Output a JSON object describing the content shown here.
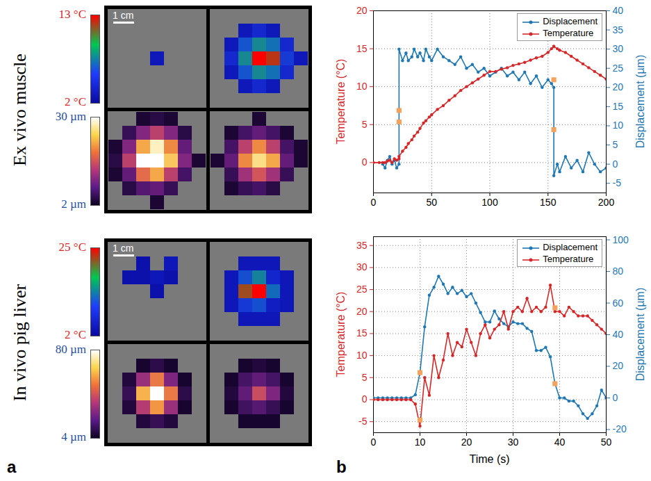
{
  "panel_labels": [
    "a",
    "b"
  ],
  "chart_data": [
    {
      "type": "heatmap",
      "row_label": "Ex vivo muscle",
      "scale_bar": "1 cm",
      "colorbars": [
        {
          "range": [
            2,
            13
          ],
          "ticks": [
            {
              "value": 13,
              "label": "13 °C"
            },
            {
              "value": 2,
              "label": "2 °C"
            }
          ],
          "color": "#d62728",
          "colors": [
            "#0a0aa0",
            "#1e3cff",
            "#00c850",
            "#ff0000"
          ]
        },
        {
          "range": [
            2,
            30
          ],
          "ticks": [
            {
              "value": 30,
              "label": "30 µm"
            },
            {
              "value": 2,
              "label": "2 µm"
            }
          ],
          "color": "#1f4fa0",
          "colors": [
            "#0d0221",
            "#5b1a8a",
            "#b5367a",
            "#f0703a",
            "#fbd54a",
            "#ffffff"
          ]
        }
      ],
      "maps": [
        {
          "colorbar": 0,
          "cells": [
            [
              null,
              null,
              null,
              null,
              null,
              null,
              null
            ],
            [
              null,
              null,
              null,
              null,
              null,
              null,
              null
            ],
            [
              null,
              null,
              null,
              null,
              null,
              null,
              null
            ],
            [
              null,
              null,
              null,
              3,
              null,
              null,
              null
            ],
            [
              null,
              null,
              null,
              null,
              null,
              null,
              null
            ],
            [
              null,
              null,
              null,
              null,
              null,
              null,
              null
            ],
            [
              null,
              null,
              null,
              null,
              null,
              null,
              null
            ]
          ]
        },
        {
          "colorbar": 0,
          "cells": [
            [
              null,
              null,
              null,
              null,
              null,
              null,
              null
            ],
            [
              null,
              null,
              3,
              4,
              3,
              null,
              null
            ],
            [
              null,
              3,
              6,
              8,
              7,
              4,
              null
            ],
            [
              null,
              4,
              8,
              13,
              12,
              5,
              3
            ],
            [
              null,
              3,
              6,
              8,
              7,
              4,
              null
            ],
            [
              null,
              null,
              3,
              4,
              3,
              null,
              null
            ],
            [
              null,
              null,
              null,
              null,
              null,
              null,
              null
            ]
          ]
        },
        {
          "colorbar": 1,
          "cells": [
            [
              null,
              null,
              3,
              4,
              3,
              null,
              null
            ],
            [
              null,
              5,
              10,
              14,
              10,
              4,
              null
            ],
            [
              3,
              10,
              22,
              28,
              20,
              8,
              null
            ],
            [
              4,
              14,
              30,
              30,
              24,
              10,
              3
            ],
            [
              3,
              8,
              18,
              22,
              14,
              6,
              null
            ],
            [
              null,
              4,
              7,
              8,
              5,
              null,
              null
            ],
            [
              null,
              null,
              null,
              3,
              null,
              null,
              null
            ]
          ]
        },
        {
          "colorbar": 1,
          "cells": [
            [
              null,
              null,
              null,
              3,
              null,
              null,
              null
            ],
            [
              null,
              3,
              6,
              8,
              6,
              3,
              null
            ],
            [
              null,
              6,
              14,
              20,
              14,
              6,
              3
            ],
            [
              3,
              8,
              20,
              26,
              22,
              8,
              3
            ],
            [
              null,
              5,
              12,
              16,
              12,
              5,
              null
            ],
            [
              null,
              3,
              5,
              6,
              4,
              null,
              null
            ],
            [
              null,
              null,
              null,
              null,
              null,
              null,
              null
            ]
          ]
        }
      ]
    },
    {
      "type": "heatmap",
      "row_label": "In vivo pig liver",
      "scale_bar": "1 cm",
      "colorbars": [
        {
          "range": [
            2,
            25
          ],
          "ticks": [
            {
              "value": 25,
              "label": "25 °C"
            },
            {
              "value": 2,
              "label": "2 °C"
            }
          ],
          "color": "#d62728",
          "colors": [
            "#0a0aa0",
            "#1e3cff",
            "#00c850",
            "#ff0000"
          ]
        },
        {
          "range": [
            4,
            80
          ],
          "ticks": [
            {
              "value": 80,
              "label": "80 µm"
            },
            {
              "value": 4,
              "label": "4 µm"
            }
          ],
          "color": "#1f4fa0",
          "colors": [
            "#0d0221",
            "#5b1a8a",
            "#b5367a",
            "#f0703a",
            "#fbd54a",
            "#ffffff"
          ]
        }
      ],
      "maps": [
        {
          "colorbar": 0,
          "cells": [
            [
              null,
              null,
              null,
              null,
              null,
              null,
              null
            ],
            [
              null,
              null,
              3,
              null,
              4,
              null,
              null
            ],
            [
              null,
              3,
              3,
              4,
              3,
              null,
              null
            ],
            [
              null,
              null,
              null,
              3,
              null,
              null,
              null
            ],
            [
              null,
              null,
              null,
              null,
              null,
              null,
              null
            ],
            [
              null,
              null,
              null,
              null,
              null,
              null,
              null
            ],
            [
              null,
              null,
              null,
              null,
              null,
              null,
              null
            ]
          ]
        },
        {
          "colorbar": 0,
          "cells": [
            [
              null,
              null,
              null,
              null,
              null,
              null,
              null
            ],
            [
              null,
              null,
              4,
              4,
              4,
              null,
              null
            ],
            [
              null,
              4,
              10,
              14,
              6,
              4,
              null
            ],
            [
              null,
              4,
              22,
              25,
              12,
              4,
              null
            ],
            [
              null,
              4,
              8,
              10,
              5,
              4,
              null
            ],
            [
              null,
              null,
              4,
              4,
              4,
              null,
              null
            ],
            [
              null,
              null,
              null,
              null,
              null,
              null,
              null
            ]
          ]
        },
        {
          "colorbar": 1,
          "cells": [
            [
              null,
              null,
              null,
              null,
              null,
              null,
              null
            ],
            [
              null,
              null,
              6,
              10,
              6,
              null,
              null
            ],
            [
              null,
              8,
              30,
              50,
              25,
              6,
              null
            ],
            [
              null,
              12,
              60,
              80,
              50,
              10,
              null
            ],
            [
              null,
              8,
              35,
              55,
              30,
              6,
              null
            ],
            [
              null,
              null,
              8,
              12,
              8,
              null,
              null
            ],
            [
              null,
              null,
              null,
              null,
              null,
              null,
              null
            ]
          ]
        },
        {
          "colorbar": 1,
          "cells": [
            [
              null,
              null,
              null,
              null,
              null,
              null,
              null
            ],
            [
              null,
              null,
              6,
              8,
              6,
              null,
              null
            ],
            [
              null,
              6,
              15,
              20,
              15,
              6,
              null
            ],
            [
              null,
              8,
              20,
              40,
              25,
              8,
              null
            ],
            [
              null,
              6,
              14,
              18,
              12,
              6,
              null
            ],
            [
              null,
              null,
              6,
              6,
              6,
              null,
              null
            ],
            [
              null,
              null,
              null,
              null,
              null,
              null,
              null
            ]
          ]
        }
      ]
    },
    {
      "type": "line",
      "ylabel": "Temperature (°C)",
      "y2label": "Displacement (µm)",
      "x": [
        0,
        5,
        8,
        10,
        12,
        14,
        16,
        18,
        20,
        22,
        22,
        25,
        28,
        30,
        33,
        35,
        38,
        40,
        43,
        45,
        48,
        50,
        55,
        60,
        65,
        70,
        75,
        80,
        85,
        90,
        95,
        100,
        105,
        110,
        115,
        120,
        125,
        130,
        135,
        140,
        145,
        150,
        153,
        155,
        155,
        158,
        160,
        165,
        170,
        175,
        180,
        185,
        190,
        195,
        200
      ],
      "series": [
        {
          "name": "Displacement",
          "color": "#1f77b4",
          "axis": "y2",
          "marker": "circle",
          "values": [
            null,
            null,
            0,
            -1,
            1,
            2,
            0,
            1,
            -1,
            0,
            30,
            27,
            29,
            27,
            28,
            30,
            28,
            29,
            27,
            30,
            28,
            27,
            30,
            28,
            27,
            26,
            28,
            25,
            26,
            24,
            25,
            23,
            24,
            25,
            23,
            24,
            22,
            24,
            21,
            23,
            20,
            22,
            21,
            20,
            -3,
            0,
            -2,
            2,
            -1,
            1,
            -2,
            3,
            0,
            -2,
            -1
          ]
        },
        {
          "name": "Temperature",
          "color": "#d62728",
          "marker": "circle",
          "values": [
            0,
            0,
            0,
            0,
            0.2,
            0.3,
            0,
            0.5,
            0.3,
            0.5,
            0.8,
            1.5,
            2,
            2.5,
            3,
            3.5,
            4,
            4.5,
            5.2,
            5.5,
            6,
            6.3,
            7,
            7.5,
            8.2,
            8.8,
            9.5,
            10,
            10.5,
            11,
            11.5,
            12,
            12,
            12.3,
            12.5,
            12.8,
            13,
            13.2,
            13.5,
            13.8,
            14,
            14.5,
            15,
            15.3,
            15.3,
            15,
            14.8,
            14.5,
            14,
            13.5,
            13,
            12.5,
            12,
            11.5,
            11
          ]
        }
      ],
      "markers": {
        "x": [
          22,
          22,
          155,
          155
        ],
        "values": [
          14,
          11,
          22,
          9
        ],
        "axis": "y2",
        "color": "#f5a25d",
        "marker": "square"
      },
      "xlim": [
        0,
        200
      ],
      "xticks": [
        0,
        50,
        100,
        150,
        200
      ],
      "ylim": [
        -4,
        20
      ],
      "yticks": [
        0,
        5,
        10,
        15,
        20
      ],
      "y2lim": [
        -7.5,
        40
      ],
      "y2ticks": [
        -5,
        0,
        5,
        10,
        15,
        20,
        25,
        30,
        35,
        40
      ],
      "grid": true,
      "legend": "upper right"
    },
    {
      "type": "line",
      "xlabel": "Time (s)",
      "ylabel": "Temperature (°C)",
      "y2label": "Displacement (µm)",
      "x": [
        0,
        1,
        2,
        3,
        4,
        5,
        6,
        7,
        8,
        9,
        10,
        11,
        12,
        13,
        14,
        15,
        16,
        17,
        18,
        19,
        20,
        21,
        22,
        23,
        24,
        25,
        26,
        27,
        28,
        29,
        30,
        31,
        32,
        33,
        34,
        35,
        36,
        37,
        38,
        39,
        40,
        41,
        42,
        43,
        44,
        45,
        46,
        47,
        48,
        49,
        50
      ],
      "series": [
        {
          "name": "Displacement",
          "color": "#1f77b4",
          "axis": "y2",
          "marker": "circle",
          "values": [
            0,
            0,
            0,
            0,
            0,
            0,
            0,
            0,
            0,
            2,
            16,
            45,
            65,
            70,
            77,
            72,
            66,
            70,
            66,
            68,
            64,
            66,
            60,
            54,
            48,
            48,
            55,
            50,
            47,
            45,
            48,
            47,
            47,
            44,
            42,
            30,
            30,
            32,
            26,
            9,
            0,
            0,
            -2,
            -2,
            -5,
            -10,
            -13,
            -10,
            -5,
            5,
            0
          ]
        },
        {
          "name": "Temperature",
          "color": "#d62728",
          "marker": "circle",
          "values": [
            0,
            0,
            0,
            0,
            0,
            0,
            0,
            0,
            0,
            -1,
            -6,
            5,
            1,
            10,
            5,
            9,
            15,
            10,
            13,
            12,
            16,
            13,
            10,
            15,
            17,
            14,
            16,
            17,
            20,
            16,
            20,
            21,
            20,
            23,
            20,
            21,
            20,
            21,
            26,
            20,
            20,
            19,
            21,
            20,
            19,
            19,
            19,
            18,
            17,
            16,
            15
          ]
        }
      ],
      "markers": {
        "x": [
          10,
          10,
          39,
          39
        ],
        "values": [
          16,
          -14,
          57,
          9
        ],
        "axis": "y2",
        "color": "#f5a25d",
        "marker": "square"
      },
      "xlim": [
        0,
        50
      ],
      "xticks": [
        0,
        10,
        20,
        30,
        40,
        50
      ],
      "ylim": [
        -7.5,
        37
      ],
      "yticks": [
        -5,
        0,
        5,
        10,
        15,
        20,
        25,
        30,
        35
      ],
      "y2lim": [
        -22,
        102
      ],
      "y2ticks": [
        -20,
        0,
        20,
        40,
        60,
        80,
        100
      ],
      "grid": true,
      "legend": "upper right"
    }
  ]
}
